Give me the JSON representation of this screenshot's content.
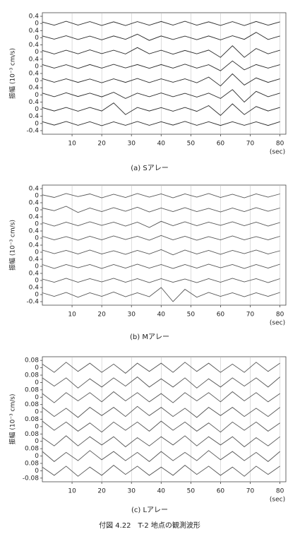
{
  "caption": "付図 4.22　T-2 地点の観測波形",
  "chart_data": [
    {
      "type": "line",
      "caption": "(a) Sアレー",
      "ylabel": "振幅 (10⁻³ cm/s)",
      "xlabel": "(sec)",
      "color": "#2a2a2a",
      "grid": true,
      "xlim": [
        0,
        82
      ],
      "xticks": [
        10,
        20,
        30,
        40,
        50,
        60,
        70,
        80
      ],
      "ylim": [
        -6.2,
        0.6
      ],
      "yticks": [
        0.4,
        0,
        {
          "value": -0.4,
          "label": "0.4"
        },
        {
          "value": -0.8,
          "label": "0"
        },
        {
          "value": -1.2,
          "label": "0.4"
        },
        {
          "value": -1.6,
          "label": "0"
        },
        {
          "value": -2.0,
          "label": "0.4"
        },
        {
          "value": -2.4,
          "label": "0"
        },
        {
          "value": -2.8,
          "label": "0.4"
        },
        {
          "value": -3.2,
          "label": "0"
        },
        {
          "value": -3.6,
          "label": "0.4"
        },
        {
          "value": -4.0,
          "label": "0"
        },
        {
          "value": -4.4,
          "label": "0.4"
        },
        {
          "value": -4.8,
          "label": "0"
        },
        {
          "value": -5.2,
          "label": "0.4"
        },
        {
          "value": -5.6,
          "label": "0"
        },
        {
          "value": -6.0,
          "label": "-0.4"
        }
      ],
      "x": [
        0,
        4,
        8,
        12,
        16,
        20,
        24,
        28,
        32,
        36,
        40,
        44,
        48,
        52,
        56,
        60,
        64,
        68,
        72,
        76,
        80
      ],
      "series": [
        {
          "values": [
            0.08,
            -0.1,
            0.12,
            -0.09,
            0.1,
            -0.11,
            0.09,
            -0.12,
            0.1,
            -0.1,
            0.11,
            -0.09,
            0.12,
            -0.1,
            0.09,
            -0.11,
            0.1,
            -0.12,
            0.11,
            -0.1,
            0.09
          ]
        },
        {
          "values": [
            0.1,
            -0.08,
            0.11,
            -0.1,
            0.09,
            -0.12,
            0.1,
            -0.09,
            0.2,
            -0.15,
            0.1,
            -0.1,
            0.09,
            -0.11,
            0.1,
            -0.12,
            0.11,
            -0.09,
            0.3,
            -0.1,
            0.1
          ]
        },
        {
          "values": [
            0.09,
            -0.11,
            0.1,
            -0.1,
            0.12,
            -0.09,
            0.1,
            -0.11,
            0.25,
            -0.1,
            0.1,
            -0.12,
            0.09,
            -0.1,
            0.11,
            -0.3,
            0.35,
            -0.3,
            0.2,
            -0.1,
            0.1
          ]
        },
        {
          "values": [
            0.1,
            -0.1,
            0.09,
            -0.12,
            0.1,
            -0.1,
            0.11,
            -0.09,
            0.1,
            -0.11,
            0.1,
            -0.1,
            0.12,
            -0.1,
            0.09,
            -0.25,
            0.3,
            -0.2,
            0.1,
            -0.1,
            0.09
          ]
        },
        {
          "values": [
            0.11,
            -0.09,
            0.1,
            -0.1,
            0.09,
            -0.12,
            0.1,
            -0.1,
            0.12,
            -0.11,
            0.1,
            -0.09,
            0.1,
            -0.12,
            0.2,
            -0.3,
            0.38,
            -0.25,
            0.15,
            -0.1,
            0.1
          ]
        },
        {
          "values": [
            0.1,
            -0.1,
            0.12,
            -0.09,
            0.1,
            -0.11,
            0.15,
            -0.2,
            0.1,
            -0.1,
            0.11,
            -0.1,
            0.09,
            -0.12,
            0.1,
            -0.2,
            0.3,
            -0.4,
            0.2,
            -0.1,
            0.1
          ]
        },
        {
          "values": [
            0.09,
            -0.1,
            0.1,
            -0.11,
            0.1,
            -0.1,
            0.35,
            -0.3,
            0.1,
            -0.1,
            0.09,
            -0.11,
            0.1,
            -0.12,
            0.2,
            -0.35,
            0.3,
            -0.3,
            0.15,
            -0.1,
            0.1
          ]
        },
        {
          "values": [
            0.1,
            -0.09,
            0.11,
            -0.1,
            0.1,
            -0.12,
            0.09,
            -0.1,
            0.11,
            -0.1,
            0.1,
            -0.09,
            0.12,
            -0.1,
            0.1,
            -0.11,
            0.1,
            -0.1,
            0.09,
            -0.11,
            0.1
          ]
        }
      ]
    },
    {
      "type": "line",
      "caption": "(b) Mアレー",
      "ylabel": "振幅 (10⁻³ cm/s)",
      "xlabel": "(sec)",
      "color": "#555555",
      "grid": true,
      "xlim": [
        0,
        82
      ],
      "xticks": [
        10,
        20,
        30,
        40,
        50,
        60,
        70,
        80
      ],
      "ylim": [
        -6.2,
        0.6
      ],
      "yticks": [
        0.4,
        0,
        {
          "value": -0.4,
          "label": "0.4"
        },
        {
          "value": -0.8,
          "label": "0"
        },
        {
          "value": -1.2,
          "label": "0.4"
        },
        {
          "value": -1.6,
          "label": "0"
        },
        {
          "value": -2.0,
          "label": "0.4"
        },
        {
          "value": -2.4,
          "label": "0"
        },
        {
          "value": -2.8,
          "label": "0.4"
        },
        {
          "value": -3.2,
          "label": "0"
        },
        {
          "value": -3.6,
          "label": "0.4"
        },
        {
          "value": -4.0,
          "label": "0"
        },
        {
          "value": -4.4,
          "label": "0.4"
        },
        {
          "value": -4.8,
          "label": "0"
        },
        {
          "value": -5.2,
          "label": "0.4"
        },
        {
          "value": -5.6,
          "label": "0"
        },
        {
          "value": -6.0,
          "label": "-0.4"
        }
      ],
      "x": [
        0,
        4,
        8,
        12,
        16,
        20,
        24,
        28,
        32,
        36,
        40,
        44,
        48,
        52,
        56,
        60,
        64,
        68,
        72,
        76,
        80
      ],
      "series": [
        {
          "values": [
            0.05,
            -0.1,
            0.12,
            -0.05,
            0.1,
            -0.12,
            0.08,
            -0.1,
            0.12,
            -0.08,
            0.1,
            -0.12,
            0.1,
            -0.08,
            0.12,
            -0.1,
            0.08,
            -0.12,
            0.1,
            -0.08,
            0.1
          ]
        },
        {
          "values": [
            0.1,
            -0.05,
            0.2,
            -0.15,
            0.1,
            -0.1,
            0.12,
            -0.08,
            0.15,
            -0.12,
            0.1,
            -0.1,
            0.12,
            -0.1,
            0.08,
            -0.12,
            0.1,
            -0.1,
            0.12,
            -0.08,
            0.1
          ]
        },
        {
          "values": [
            0.08,
            -0.12,
            0.1,
            -0.1,
            0.12,
            -0.08,
            0.1,
            -0.12,
            0.1,
            -0.2,
            0.15,
            -0.1,
            0.12,
            -0.1,
            0.1,
            -0.08,
            0.12,
            -0.1,
            0.1,
            -0.12,
            0.08
          ]
        },
        {
          "values": [
            0.1,
            -0.1,
            0.08,
            -0.12,
            0.1,
            -0.1,
            0.12,
            -0.08,
            0.1,
            -0.12,
            0.15,
            -0.1,
            0.1,
            -0.12,
            0.08,
            -0.1,
            0.12,
            -0.1,
            0.08,
            -0.1,
            0.1
          ]
        },
        {
          "values": [
            0.12,
            -0.08,
            0.1,
            -0.1,
            0.12,
            -0.1,
            0.08,
            -0.12,
            0.1,
            -0.1,
            0.15,
            -0.15,
            0.12,
            -0.1,
            0.1,
            -0.12,
            0.1,
            -0.08,
            0.12,
            -0.1,
            0.08
          ]
        },
        {
          "values": [
            0.1,
            -0.12,
            0.1,
            -0.08,
            0.1,
            -0.12,
            0.1,
            -0.1,
            0.12,
            -0.1,
            0.1,
            -0.12,
            0.1,
            -0.1,
            0.12,
            -0.08,
            0.1,
            -0.12,
            0.1,
            -0.1,
            0.12
          ]
        },
        {
          "values": [
            0.08,
            -0.1,
            0.12,
            -0.1,
            0.1,
            -0.08,
            0.12,
            -0.1,
            0.1,
            -0.12,
            0.1,
            -0.1,
            0.08,
            -0.12,
            0.1,
            -0.1,
            0.12,
            -0.08,
            0.1,
            -0.12,
            0.1
          ]
        },
        {
          "values": [
            0.1,
            -0.1,
            0.12,
            -0.15,
            0.1,
            -0.1,
            0.15,
            -0.12,
            0.1,
            -0.12,
            0.4,
            -0.4,
            0.3,
            -0.15,
            0.12,
            -0.1,
            0.1,
            -0.12,
            0.1,
            -0.1,
            0.12
          ]
        }
      ]
    },
    {
      "type": "line",
      "caption": "(c) Lアレー",
      "ylabel": "振幅 (10⁻³ cm/s)",
      "xlabel": "(sec)",
      "color": "#555555",
      "grid": true,
      "xlim": [
        0,
        82
      ],
      "xticks": [
        10,
        20,
        30,
        40,
        50,
        60,
        70,
        80
      ],
      "ylim": [
        -1.24,
        0.12
      ],
      "yticks": [
        0.08,
        0,
        {
          "value": -0.08,
          "label": "0.08"
        },
        {
          "value": -0.16,
          "label": "0"
        },
        {
          "value": -0.24,
          "label": "0.08"
        },
        {
          "value": -0.32,
          "label": "0"
        },
        {
          "value": -0.4,
          "label": "0.08"
        },
        {
          "value": -0.48,
          "label": "0"
        },
        {
          "value": -0.56,
          "label": "0.08"
        },
        {
          "value": -0.64,
          "label": "0"
        },
        {
          "value": -0.72,
          "label": "0.08"
        },
        {
          "value": -0.8,
          "label": "0"
        },
        {
          "value": -0.88,
          "label": "0.08"
        },
        {
          "value": -0.96,
          "label": "0"
        },
        {
          "value": -1.04,
          "label": "0.08"
        },
        {
          "value": -1.12,
          "label": "0"
        },
        {
          "value": -1.2,
          "label": "-0.08"
        }
      ],
      "x": [
        0,
        4,
        8,
        12,
        16,
        20,
        24,
        28,
        32,
        36,
        40,
        44,
        48,
        52,
        56,
        60,
        64,
        68,
        72,
        76,
        80
      ],
      "series": [
        {
          "values": [
            0.04,
            -0.05,
            0.06,
            -0.04,
            0.05,
            -0.05,
            0.04,
            -0.06,
            0.05,
            -0.04,
            0.05,
            -0.05,
            0.06,
            -0.04,
            0.05,
            -0.05,
            0.04,
            -0.05,
            0.06,
            -0.04,
            0.05
          ]
        },
        {
          "values": [
            0.05,
            -0.04,
            0.05,
            -0.06,
            0.04,
            -0.05,
            0.05,
            -0.04,
            0.06,
            -0.05,
            0.04,
            -0.05,
            0.05,
            -0.06,
            0.04,
            -0.05,
            0.05,
            -0.04,
            0.05,
            -0.05,
            0.06
          ]
        },
        {
          "values": [
            0.04,
            -0.06,
            0.05,
            -0.04,
            0.05,
            -0.05,
            0.06,
            -0.04,
            0.05,
            -0.05,
            0.04,
            -0.06,
            0.05,
            -0.04,
            0.05,
            -0.05,
            0.06,
            -0.04,
            0.05,
            -0.05,
            0.04
          ]
        },
        {
          "values": [
            0.05,
            -0.05,
            0.04,
            -0.06,
            0.05,
            -0.04,
            0.05,
            -0.05,
            0.06,
            -0.04,
            0.05,
            -0.05,
            0.04,
            -0.06,
            0.05,
            -0.04,
            0.05,
            -0.05,
            0.04,
            -0.05,
            0.05
          ]
        },
        {
          "values": [
            0.06,
            -0.04,
            0.05,
            -0.05,
            0.04,
            -0.06,
            0.05,
            -0.04,
            0.05,
            -0.05,
            0.06,
            -0.04,
            0.05,
            -0.05,
            0.04,
            -0.06,
            0.05,
            -0.04,
            0.05,
            -0.05,
            0.04
          ]
        },
        {
          "values": [
            0.04,
            -0.05,
            0.06,
            -0.05,
            0.05,
            -0.04,
            0.05,
            -0.06,
            0.04,
            -0.05,
            0.05,
            -0.04,
            0.06,
            -0.05,
            0.05,
            -0.04,
            0.05,
            -0.06,
            0.04,
            -0.05,
            0.05
          ]
        },
        {
          "values": [
            0.05,
            -0.06,
            0.04,
            -0.05,
            0.06,
            -0.04,
            0.05,
            -0.05,
            0.04,
            -0.06,
            0.05,
            -0.05,
            0.04,
            -0.05,
            0.06,
            -0.04,
            0.05,
            -0.05,
            0.04,
            -0.06,
            0.05
          ]
        },
        {
          "values": [
            0.04,
            -0.05,
            0.05,
            -0.06,
            0.04,
            -0.05,
            0.06,
            -0.04,
            0.05,
            -0.05,
            0.04,
            -0.05,
            0.06,
            -0.04,
            0.05,
            -0.05,
            0.04,
            -0.06,
            0.05,
            -0.04,
            0.05
          ]
        }
      ]
    }
  ]
}
